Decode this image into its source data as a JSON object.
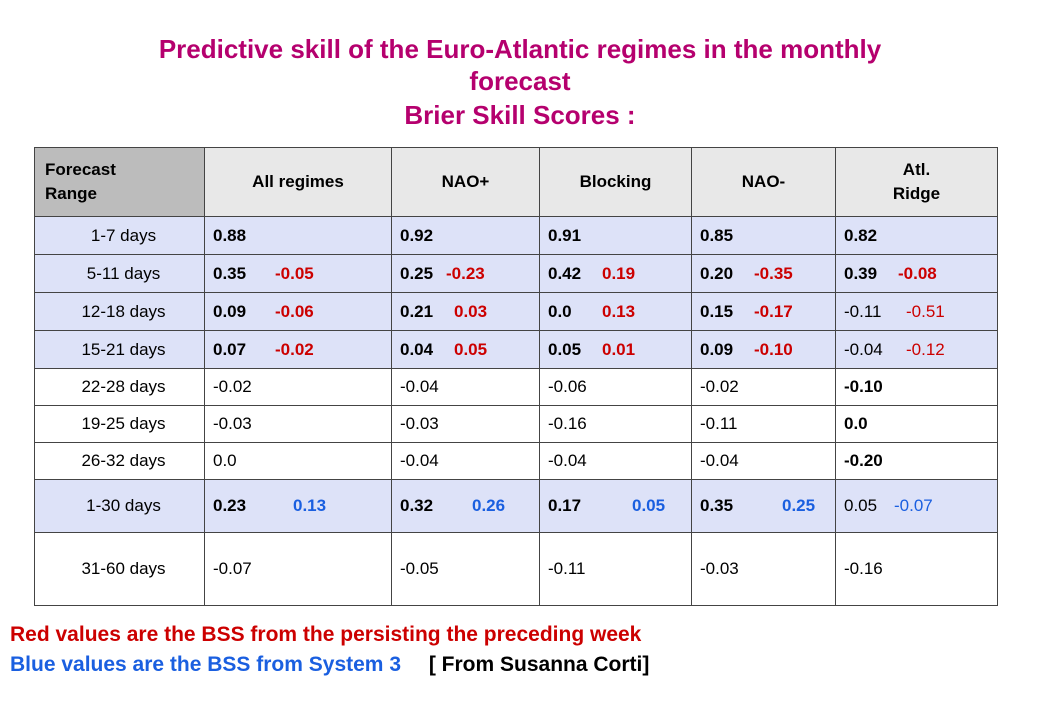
{
  "title": {
    "line1": "Predictive skill of the Euro-Atlantic regimes in the monthly",
    "line2": "forecast",
    "subtitle": "Brier Skill Scores :"
  },
  "table": {
    "headers": {
      "range_line1": "Forecast",
      "range_line2": "Range",
      "all": "All regimes",
      "nao_plus": "NAO+",
      "blocking": "Blocking",
      "nao_minus": "NAO-",
      "atl_line1": "Atl.",
      "atl_line2": "Ridge"
    },
    "rows": [
      {
        "range": "1-7 days",
        "cells": [
          {
            "a": "0.88",
            "b": ""
          },
          {
            "a": "0.92",
            "b": ""
          },
          {
            "a": "0.91",
            "b": ""
          },
          {
            "a": "0.85",
            "b": ""
          },
          {
            "a": "0.82",
            "b": ""
          }
        ]
      },
      {
        "range": "5-11 days",
        "cells": [
          {
            "a": "0.35",
            "b": "-0.05"
          },
          {
            "a": "0.25",
            "b": "-0.23"
          },
          {
            "a": "0.42",
            "b": "0.19"
          },
          {
            "a": "0.20",
            "b": "-0.35"
          },
          {
            "a": "0.39",
            "b": "-0.08"
          }
        ]
      },
      {
        "range": "12-18 days",
        "cells": [
          {
            "a": "0.09",
            "b": "-0.06"
          },
          {
            "a": "0.21",
            "b": "0.03"
          },
          {
            "a": "0.0",
            "b": "0.13"
          },
          {
            "a": "0.15",
            "b": "-0.17"
          },
          {
            "a": "-0.11",
            "b": "-0.51"
          }
        ]
      },
      {
        "range": "15-21 days",
        "cells": [
          {
            "a": "0.07",
            "b": "-0.02"
          },
          {
            "a": "0.04",
            "b": "0.05"
          },
          {
            "a": "0.05",
            "b": "0.01"
          },
          {
            "a": "0.09",
            "b": "-0.10"
          },
          {
            "a": "-0.04",
            "b": "-0.12"
          }
        ]
      },
      {
        "range": "22-28 days",
        "cells": [
          {
            "a": "-0.02"
          },
          {
            "a": "-0.04"
          },
          {
            "a": "-0.06"
          },
          {
            "a": "-0.02"
          },
          {
            "a": "-0.10"
          }
        ]
      },
      {
        "range": "19-25 days",
        "cells": [
          {
            "a": "-0.03"
          },
          {
            "a": "-0.03"
          },
          {
            "a": "-0.16"
          },
          {
            "a": "-0.11"
          },
          {
            "a": "0.0"
          }
        ]
      },
      {
        "range": "26-32 days",
        "cells": [
          {
            "a": "0.0"
          },
          {
            "a": "-0.04"
          },
          {
            "a": "-0.04"
          },
          {
            "a": "-0.04"
          },
          {
            "a": "-0.20"
          }
        ]
      },
      {
        "range": "1-30 days",
        "cells": [
          {
            "a": "0.23",
            "b": "0.13"
          },
          {
            "a": "0.32",
            "b": "0.26"
          },
          {
            "a": "0.17",
            "b": "0.05"
          },
          {
            "a": "0.35",
            "b": "0.25"
          },
          {
            "a": "0.05",
            "b": "-0.07"
          }
        ]
      },
      {
        "range": "31-60 days",
        "cells": [
          {
            "a": "-0.07"
          },
          {
            "a": "-0.05"
          },
          {
            "a": "-0.11"
          },
          {
            "a": "-0.03"
          },
          {
            "a": "-0.16"
          }
        ]
      }
    ]
  },
  "footer": {
    "red_note": "Red values are the BSS from the persisting the preceding week",
    "blue_note": "Blue values are the BSS from System 3",
    "source": "[ From Susanna Corti]"
  },
  "colors": {
    "title": "#b5006e",
    "persistence_red": "#cc0000",
    "system3_blue": "#1a5fe0",
    "row_highlight": "#dde2f8",
    "header_bg": "#e8e8e8",
    "corner_bg": "#bcbcbc"
  }
}
